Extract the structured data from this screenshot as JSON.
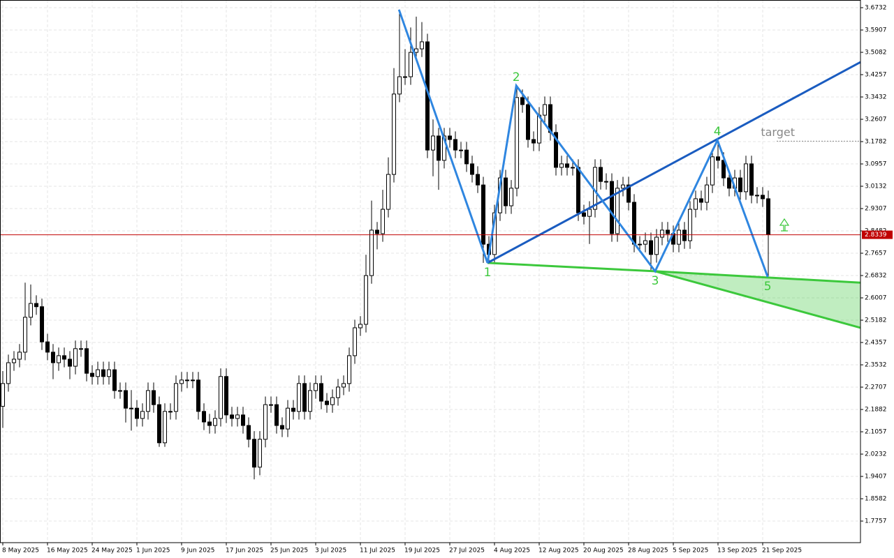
{
  "chart_data": {
    "type": "candlestick",
    "up_color": "#ffffff",
    "down_color": "#000000",
    "edge_color": "#000000",
    "grid": true,
    "xlim": [
      -0.5,
      153.5
    ],
    "ylim": [
      1.6959,
      3.7016
    ],
    "xticks": [
      {
        "value": 0,
        "label": "8 May 2025"
      },
      {
        "value": 8,
        "label": "16 May 2025"
      },
      {
        "value": 16,
        "label": "24 May 2025"
      },
      {
        "value": 24,
        "label": "1 Jun 2025"
      },
      {
        "value": 32,
        "label": "9 Jun 2025"
      },
      {
        "value": 40,
        "label": "17 Jun 2025"
      },
      {
        "value": 48,
        "label": "25 Jun 2025"
      },
      {
        "value": 56,
        "label": "3 Jul 2025"
      },
      {
        "value": 64,
        "label": "11 Jul 2025"
      },
      {
        "value": 72,
        "label": "19 Jul 2025"
      },
      {
        "value": 80,
        "label": "27 Jul 2025"
      },
      {
        "value": 88,
        "label": "4 Aug 2025"
      },
      {
        "value": 96,
        "label": "12 Aug 2025"
      },
      {
        "value": 104,
        "label": "20 Aug 2025"
      },
      {
        "value": 112,
        "label": "28 Aug 2025"
      },
      {
        "value": 120,
        "label": "5 Sep 2025"
      },
      {
        "value": 128,
        "label": "13 Sep 2025"
      },
      {
        "value": 136,
        "label": "21 Sep 2025"
      }
    ],
    "yticks": [
      3.6732,
      3.5907,
      3.5082,
      3.4257,
      3.3432,
      3.2607,
      3.1782,
      3.0957,
      3.0132,
      2.9307,
      2.8482,
      2.7657,
      2.6832,
      2.6007,
      2.5182,
      2.4357,
      2.3532,
      2.2707,
      2.1882,
      2.1057,
      2.0232,
      1.9407,
      1.8582,
      1.7757
    ],
    "x": [
      0,
      1,
      2,
      3,
      4,
      5,
      6,
      7,
      8,
      9,
      10,
      11,
      12,
      13,
      14,
      15,
      16,
      17,
      18,
      19,
      20,
      21,
      22,
      23,
      24,
      25,
      26,
      27,
      28,
      29,
      30,
      31,
      32,
      33,
      34,
      35,
      36,
      37,
      38,
      39,
      40,
      41,
      42,
      43,
      44,
      45,
      46,
      47,
      48,
      49,
      50,
      51,
      52,
      53,
      54,
      55,
      56,
      57,
      58,
      59,
      60,
      61,
      62,
      63,
      64,
      65,
      66,
      67,
      68,
      69,
      70,
      71,
      72,
      73,
      74,
      75,
      76,
      77,
      78,
      79,
      80,
      81,
      82,
      83,
      84,
      85,
      86,
      87,
      88,
      89,
      90,
      91,
      92,
      93,
      94,
      95,
      96,
      97,
      98,
      99,
      100,
      101,
      102,
      103,
      104,
      105,
      106,
      107,
      108,
      109,
      110,
      111,
      112,
      113,
      114,
      115,
      116,
      117,
      118,
      119,
      120,
      121,
      122,
      123,
      124,
      125,
      126,
      127,
      128,
      129,
      130,
      131,
      132,
      133,
      134,
      135,
      136,
      137
    ],
    "open": [
      2.2,
      2.284,
      2.361,
      2.374,
      2.4,
      2.529,
      2.58,
      2.568,
      2.438,
      2.4,
      2.361,
      2.387,
      2.374,
      2.348,
      2.413,
      2.413,
      2.322,
      2.31,
      2.335,
      2.31,
      2.335,
      2.258,
      2.258,
      2.193,
      2.193,
      2.155,
      2.181,
      2.258,
      2.206,
      2.065,
      2.181,
      2.181,
      2.284,
      2.297,
      2.297,
      2.297,
      2.181,
      2.142,
      2.129,
      2.155,
      2.31,
      2.168,
      2.155,
      2.168,
      2.129,
      2.078,
      1.975,
      2.078,
      2.206,
      2.206,
      2.129,
      2.116,
      2.193,
      2.181,
      2.284,
      2.181,
      2.258,
      2.284,
      2.219,
      2.206,
      2.232,
      2.271,
      2.284,
      2.387,
      2.49,
      2.503,
      2.683,
      2.851,
      2.838,
      2.928,
      3.057,
      3.354,
      3.418,
      3.418,
      3.508,
      3.521,
      3.547,
      3.147,
      3.199,
      3.109,
      3.199,
      3.186,
      3.147,
      3.147,
      3.096,
      3.057,
      3.018,
      2.799,
      2.761,
      2.915,
      3.044,
      2.941,
      3.006,
      3.341,
      3.315,
      3.186,
      3.173,
      3.276,
      3.315,
      3.212,
      3.083,
      3.096,
      3.083,
      3.083,
      2.915,
      2.902,
      2.928,
      3.083,
      3.031,
      3.031,
      2.838,
      3.006,
      3.018,
      2.954,
      2.799,
      2.799,
      2.812,
      2.761,
      2.825,
      2.851,
      2.838,
      2.799,
      2.851,
      2.812,
      2.928,
      2.967,
      2.954,
      3.018,
      3.122,
      3.109,
      3.044,
      3.006,
      3.044,
      2.993,
      3.096,
      2.98,
      2.98,
      2.967
    ],
    "high": [
      2.33,
      2.391,
      2.404,
      2.43,
      2.657,
      2.65,
      2.61,
      2.598,
      2.468,
      2.43,
      2.417,
      2.417,
      2.404,
      2.443,
      2.443,
      2.443,
      2.352,
      2.365,
      2.365,
      2.365,
      2.365,
      2.288,
      2.288,
      2.26,
      2.223,
      2.211,
      2.288,
      2.288,
      2.236,
      2.211,
      2.211,
      2.314,
      2.327,
      2.327,
      2.327,
      2.327,
      2.211,
      2.172,
      2.185,
      2.34,
      2.34,
      2.198,
      2.198,
      2.198,
      2.159,
      2.108,
      2.108,
      2.236,
      2.236,
      2.236,
      2.159,
      2.223,
      2.223,
      2.314,
      2.314,
      2.288,
      2.314,
      2.314,
      2.249,
      2.262,
      2.301,
      2.314,
      2.417,
      2.52,
      2.533,
      2.76,
      2.96,
      2.881,
      3.0,
      3.12,
      3.45,
      3.666,
      3.52,
      3.6,
      3.64,
      3.62,
      3.577,
      3.26,
      3.229,
      3.229,
      3.229,
      3.216,
      3.177,
      3.177,
      3.126,
      3.087,
      3.048,
      2.829,
      2.945,
      3.074,
      3.074,
      3.036,
      3.385,
      3.371,
      3.345,
      3.216,
      3.306,
      3.345,
      3.345,
      3.242,
      3.126,
      3.126,
      3.113,
      3.113,
      2.945,
      2.958,
      3.113,
      3.113,
      3.061,
      3.061,
      3.036,
      3.048,
      3.048,
      2.984,
      2.829,
      2.842,
      2.842,
      2.855,
      2.881,
      2.881,
      2.868,
      2.881,
      2.881,
      2.958,
      2.997,
      2.997,
      3.048,
      3.152,
      3.183,
      3.139,
      3.074,
      3.074,
      3.074,
      3.126,
      3.126,
      3.01,
      3.01,
      2.997
    ],
    "low": [
      2.12,
      2.254,
      2.331,
      2.344,
      2.37,
      2.499,
      2.538,
      2.408,
      2.37,
      2.3,
      2.331,
      2.344,
      2.3,
      2.318,
      2.383,
      2.292,
      2.28,
      2.28,
      2.28,
      2.28,
      2.228,
      2.228,
      2.14,
      2.11,
      2.125,
      2.125,
      2.151,
      2.176,
      2.05,
      2.05,
      2.151,
      2.151,
      2.254,
      2.267,
      2.267,
      2.151,
      2.112,
      2.099,
      2.099,
      2.125,
      2.138,
      2.125,
      2.125,
      2.099,
      2.048,
      1.93,
      1.945,
      2.048,
      2.176,
      2.099,
      2.086,
      2.086,
      2.151,
      2.151,
      2.151,
      2.151,
      2.228,
      2.189,
      2.176,
      2.176,
      2.202,
      2.241,
      2.254,
      2.357,
      2.46,
      2.473,
      2.653,
      2.78,
      2.808,
      2.898,
      3.027,
      3.324,
      3.388,
      3.388,
      3.478,
      3.491,
      3.117,
      3.05,
      3.0,
      3.079,
      3.156,
      3.117,
      3.117,
      3.066,
      3.027,
      2.988,
      2.73,
      2.731,
      2.731,
      2.885,
      2.911,
      2.911,
      2.976,
      3.285,
      3.156,
      3.143,
      3.143,
      3.246,
      3.182,
      3.053,
      3.053,
      3.053,
      3.053,
      2.885,
      2.872,
      2.8,
      2.898,
      3.001,
      3.001,
      2.808,
      2.808,
      2.976,
      2.924,
      2.769,
      2.769,
      2.769,
      2.699,
      2.731,
      2.795,
      2.808,
      2.769,
      2.769,
      2.782,
      2.782,
      2.898,
      2.924,
      2.924,
      2.988,
      3.079,
      3.014,
      2.976,
      2.976,
      2.963,
      2.963,
      2.95,
      2.95,
      2.937,
      2.678
    ],
    "close": [
      2.284,
      2.361,
      2.374,
      2.4,
      2.529,
      2.58,
      2.568,
      2.438,
      2.4,
      2.361,
      2.387,
      2.374,
      2.348,
      2.413,
      2.413,
      2.322,
      2.31,
      2.335,
      2.31,
      2.335,
      2.258,
      2.258,
      2.193,
      2.193,
      2.155,
      2.181,
      2.258,
      2.206,
      2.065,
      2.181,
      2.181,
      2.284,
      2.297,
      2.297,
      2.297,
      2.181,
      2.142,
      2.129,
      2.155,
      2.31,
      2.168,
      2.155,
      2.168,
      2.129,
      2.078,
      1.975,
      2.078,
      2.206,
      2.206,
      2.129,
      2.116,
      2.193,
      2.181,
      2.284,
      2.181,
      2.258,
      2.284,
      2.219,
      2.206,
      2.232,
      2.271,
      2.284,
      2.387,
      2.49,
      2.503,
      2.683,
      2.851,
      2.838,
      2.928,
      3.057,
      3.354,
      3.418,
      3.418,
      3.508,
      3.521,
      3.547,
      3.147,
      3.199,
      3.109,
      3.199,
      3.186,
      3.147,
      3.147,
      3.096,
      3.057,
      3.018,
      2.799,
      2.761,
      2.915,
      3.044,
      2.941,
      3.006,
      3.341,
      3.315,
      3.186,
      3.173,
      3.276,
      3.315,
      3.212,
      3.083,
      3.096,
      3.083,
      3.083,
      2.915,
      2.902,
      2.928,
      3.083,
      3.031,
      3.031,
      2.838,
      3.006,
      3.018,
      2.954,
      2.799,
      2.799,
      2.812,
      2.761,
      2.825,
      2.851,
      2.838,
      2.799,
      2.851,
      2.812,
      2.928,
      2.967,
      2.954,
      3.018,
      3.122,
      3.109,
      3.044,
      3.006,
      3.044,
      2.993,
      3.096,
      2.98,
      2.98,
      2.967,
      2.834
    ],
    "current_price": {
      "value": 2.8339,
      "color": "#c00000"
    },
    "wave": {
      "color": "#2f86e0",
      "label_color": "#3cc83c",
      "x": [
        70.9,
        86.75,
        91.9,
        116.75,
        127.9,
        136.9
      ],
      "y": [
        3.666,
        2.73,
        3.385,
        2.699,
        3.183,
        2.678
      ],
      "labels": [
        null,
        "1",
        "2",
        "3",
        "4",
        "5"
      ]
    },
    "trendline": {
      "color": "#1a5cc0",
      "x": [
        86.75,
        153.5
      ],
      "y": [
        2.73,
        3.472
      ]
    },
    "channel": {
      "color": "#3cc83c",
      "fill": "#3cc83c",
      "upper": {
        "x": [
          86.75,
          116.75,
          153.5
        ],
        "y": [
          2.73,
          2.699,
          2.657
        ]
      },
      "lower": {
        "x": [
          116.75,
          153.5
        ],
        "y": [
          2.699,
          2.49
        ]
      }
    },
    "target": {
      "label": "target",
      "value": 3.18,
      "color": "#888888"
    }
  }
}
